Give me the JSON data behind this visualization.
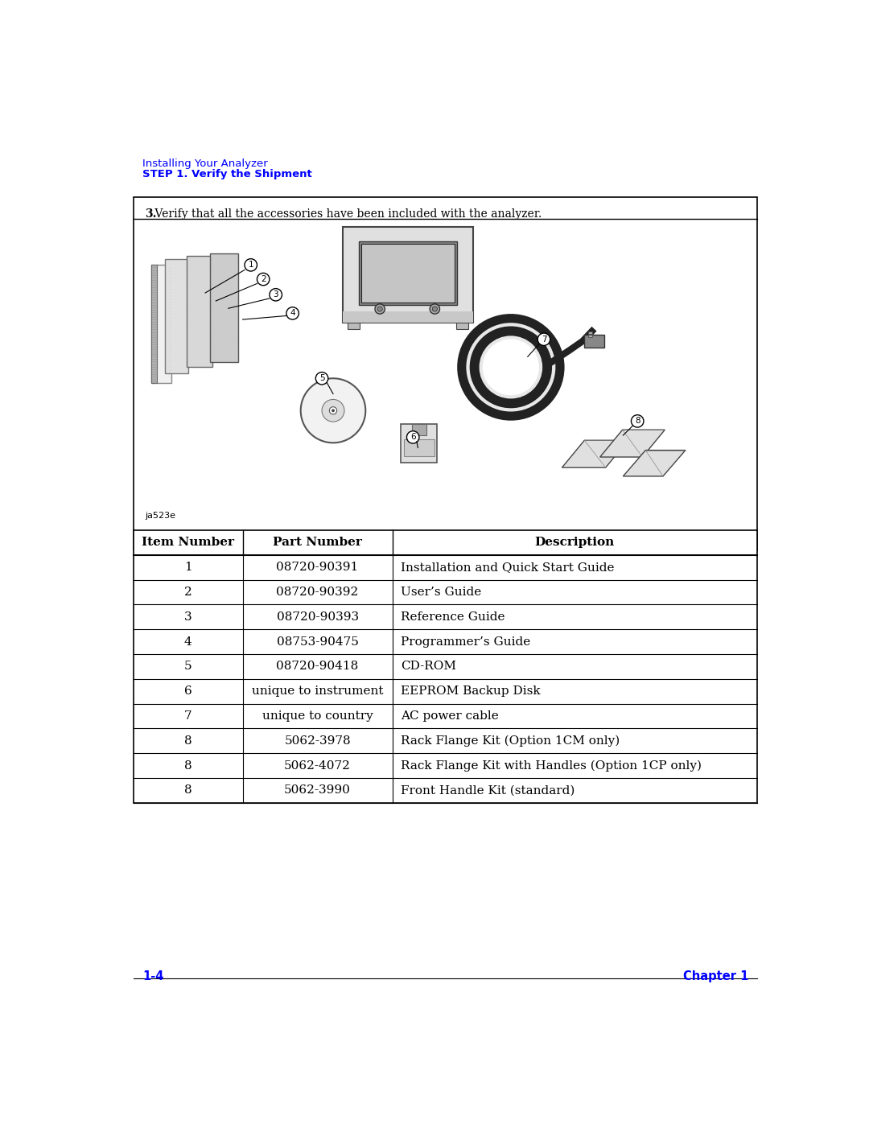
{
  "header_line1": "Installing Your Analyzer",
  "header_line2": "STEP 1. Verify the Shipment",
  "step_text_bold": "3.",
  "step_text_normal": " Verify that all the accessories have been included with the analyzer.",
  "image_caption": "ja523e",
  "table_headers": [
    "Item Number",
    "Part Number",
    "Description"
  ],
  "table_rows": [
    [
      "1",
      "08720-90391",
      "Installation and Quick Start Guide"
    ],
    [
      "2",
      "08720-90392",
      "User’s Guide"
    ],
    [
      "3",
      "08720-90393",
      "Reference Guide"
    ],
    [
      "4",
      "08753-90475",
      "Programmer’s Guide"
    ],
    [
      "5",
      "08720-90418",
      "CD-ROM"
    ],
    [
      "6",
      "unique to instrument",
      "EEPROM Backup Disk"
    ],
    [
      "7",
      "unique to country",
      "AC power cable"
    ],
    [
      "8",
      "5062-3978",
      "Rack Flange Kit (Option 1CM only)"
    ],
    [
      "8",
      "5062-4072",
      "Rack Flange Kit with Handles (Option 1CP only)"
    ],
    [
      "8",
      "5062-3990",
      "Front Handle Kit (standard)"
    ]
  ],
  "footer_left": "1-4",
  "footer_right": "Chapter 1",
  "header_color": "#0000FF",
  "page_bg": "#FFFFFF"
}
